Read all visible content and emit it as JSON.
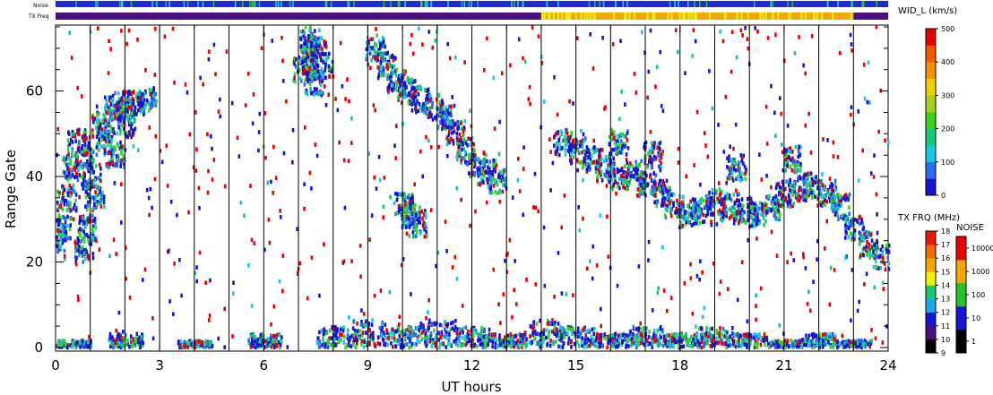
{
  "chart_data": {
    "type": "heatmap",
    "xlabel": "UT hours",
    "ylabel": "Range Gate",
    "xlim": [
      0,
      24
    ],
    "ylim": [
      0,
      75
    ],
    "x_ticks": [
      "0",
      "3",
      "6",
      "9",
      "12",
      "15",
      "18",
      "21",
      "24"
    ],
    "y_ticks": [
      "0",
      "20",
      "40",
      "60"
    ],
    "hour_gridlines": true,
    "top_strips": [
      {
        "label": "Noise",
        "dominant_color": "#1e2ad8",
        "accent_colors": [
          "#16d6d6",
          "#22c322"
        ]
      },
      {
        "label": "TX Freq",
        "segments": [
          {
            "from": 0,
            "to": 14,
            "color": "#4b1080"
          },
          {
            "from": 14,
            "to": 23,
            "color": "#f2a800"
          },
          {
            "from": 23,
            "to": 24,
            "color": "#4b1080"
          }
        ]
      }
    ],
    "colorbars": [
      {
        "title": "WID_L (km/s)",
        "range": [
          0,
          500
        ],
        "tick_labels": [
          "0",
          "100",
          "200",
          "300",
          "400",
          "500"
        ],
        "colors": [
          "#1414d2",
          "#2c6cf0",
          "#18c8e6",
          "#18c87a",
          "#3ad21e",
          "#a8d21a",
          "#f2d000",
          "#f29400",
          "#f25a00",
          "#e60000"
        ]
      },
      {
        "title": "TX FRQ (MHz)",
        "tick_labels": [
          "9",
          "10",
          "11",
          "12",
          "13",
          "14",
          "15",
          "16",
          "17",
          "18"
        ],
        "colors": [
          "#000000",
          "#4b1080",
          "#1414d2",
          "#18a6e6",
          "#18c86a",
          "#f2f000",
          "#f2a800",
          "#f26a00",
          "#e61a00"
        ]
      },
      {
        "title": "NOISE",
        "tick_labels": [
          "1",
          "10",
          "100",
          "1000",
          "10000"
        ],
        "colors": [
          "#000000",
          "#1414d2",
          "#22c322",
          "#f2a800",
          "#e60000"
        ]
      }
    ],
    "series": [
      {
        "kind": "echo_band",
        "cells": [
          [
            0.0,
            25
          ],
          [
            0.15,
            28
          ],
          [
            0.3,
            35
          ],
          [
            0.45,
            42
          ],
          [
            0.6,
            48
          ],
          [
            0.8,
            45
          ],
          [
            1.0,
            40
          ],
          [
            1.1,
            35
          ],
          [
            0.9,
            28
          ],
          [
            0.8,
            23
          ],
          [
            1.3,
            52
          ],
          [
            1.6,
            56
          ],
          [
            1.9,
            57
          ],
          [
            2.3,
            57
          ],
          [
            2.6,
            58
          ],
          [
            1.4,
            48
          ],
          [
            1.7,
            45
          ],
          [
            2.0,
            52
          ]
        ]
      },
      {
        "kind": "echo_band",
        "cells": [
          [
            7.1,
            65
          ],
          [
            7.3,
            68
          ],
          [
            7.5,
            70
          ],
          [
            7.7,
            66
          ],
          [
            7.4,
            62
          ],
          [
            7.3,
            73
          ]
        ]
      },
      {
        "kind": "echo_band",
        "cells": [
          [
            9.2,
            70
          ],
          [
            9.5,
            66
          ],
          [
            9.8,
            62
          ],
          [
            10.1,
            60
          ],
          [
            10.5,
            58
          ],
          [
            10.9,
            56
          ],
          [
            11.2,
            54
          ],
          [
            11.5,
            50
          ],
          [
            11.8,
            46
          ],
          [
            12.1,
            43
          ],
          [
            12.4,
            41
          ],
          [
            12.7,
            39
          ],
          [
            10.2,
            31
          ],
          [
            10.4,
            29
          ],
          [
            10.0,
            33
          ]
        ]
      },
      {
        "kind": "echo_band",
        "cells": [
          [
            14.6,
            48
          ],
          [
            15.0,
            46
          ],
          [
            15.4,
            44
          ],
          [
            15.8,
            42
          ],
          [
            16.2,
            40
          ],
          [
            16.6,
            41
          ],
          [
            17.0,
            38
          ],
          [
            17.4,
            36
          ],
          [
            17.8,
            33
          ],
          [
            18.2,
            31
          ],
          [
            18.6,
            32
          ],
          [
            19.0,
            34
          ],
          [
            19.4,
            33
          ],
          [
            19.8,
            32
          ],
          [
            20.2,
            31
          ],
          [
            20.6,
            33
          ],
          [
            21.0,
            36
          ],
          [
            21.4,
            37
          ],
          [
            21.8,
            38
          ],
          [
            22.2,
            36
          ],
          [
            22.6,
            33
          ],
          [
            23.0,
            28
          ],
          [
            23.4,
            24
          ],
          [
            23.8,
            21
          ],
          [
            16.2,
            48
          ],
          [
            17.2,
            45
          ],
          [
            19.6,
            42
          ],
          [
            21.2,
            44
          ]
        ]
      },
      {
        "kind": "ground_band",
        "cells": [
          [
            0.5,
            1
          ],
          [
            2,
            2
          ],
          [
            4,
            1
          ],
          [
            6,
            2
          ],
          [
            8,
            3
          ],
          [
            9,
            4
          ],
          [
            10,
            3
          ],
          [
            11,
            4
          ],
          [
            12,
            3
          ],
          [
            13,
            2
          ],
          [
            14,
            4
          ],
          [
            15,
            3
          ],
          [
            16,
            2
          ],
          [
            17,
            3
          ],
          [
            18,
            2
          ],
          [
            19,
            3
          ],
          [
            20,
            2
          ],
          [
            21,
            1
          ],
          [
            22,
            2
          ],
          [
            23,
            1
          ]
        ]
      }
    ]
  }
}
